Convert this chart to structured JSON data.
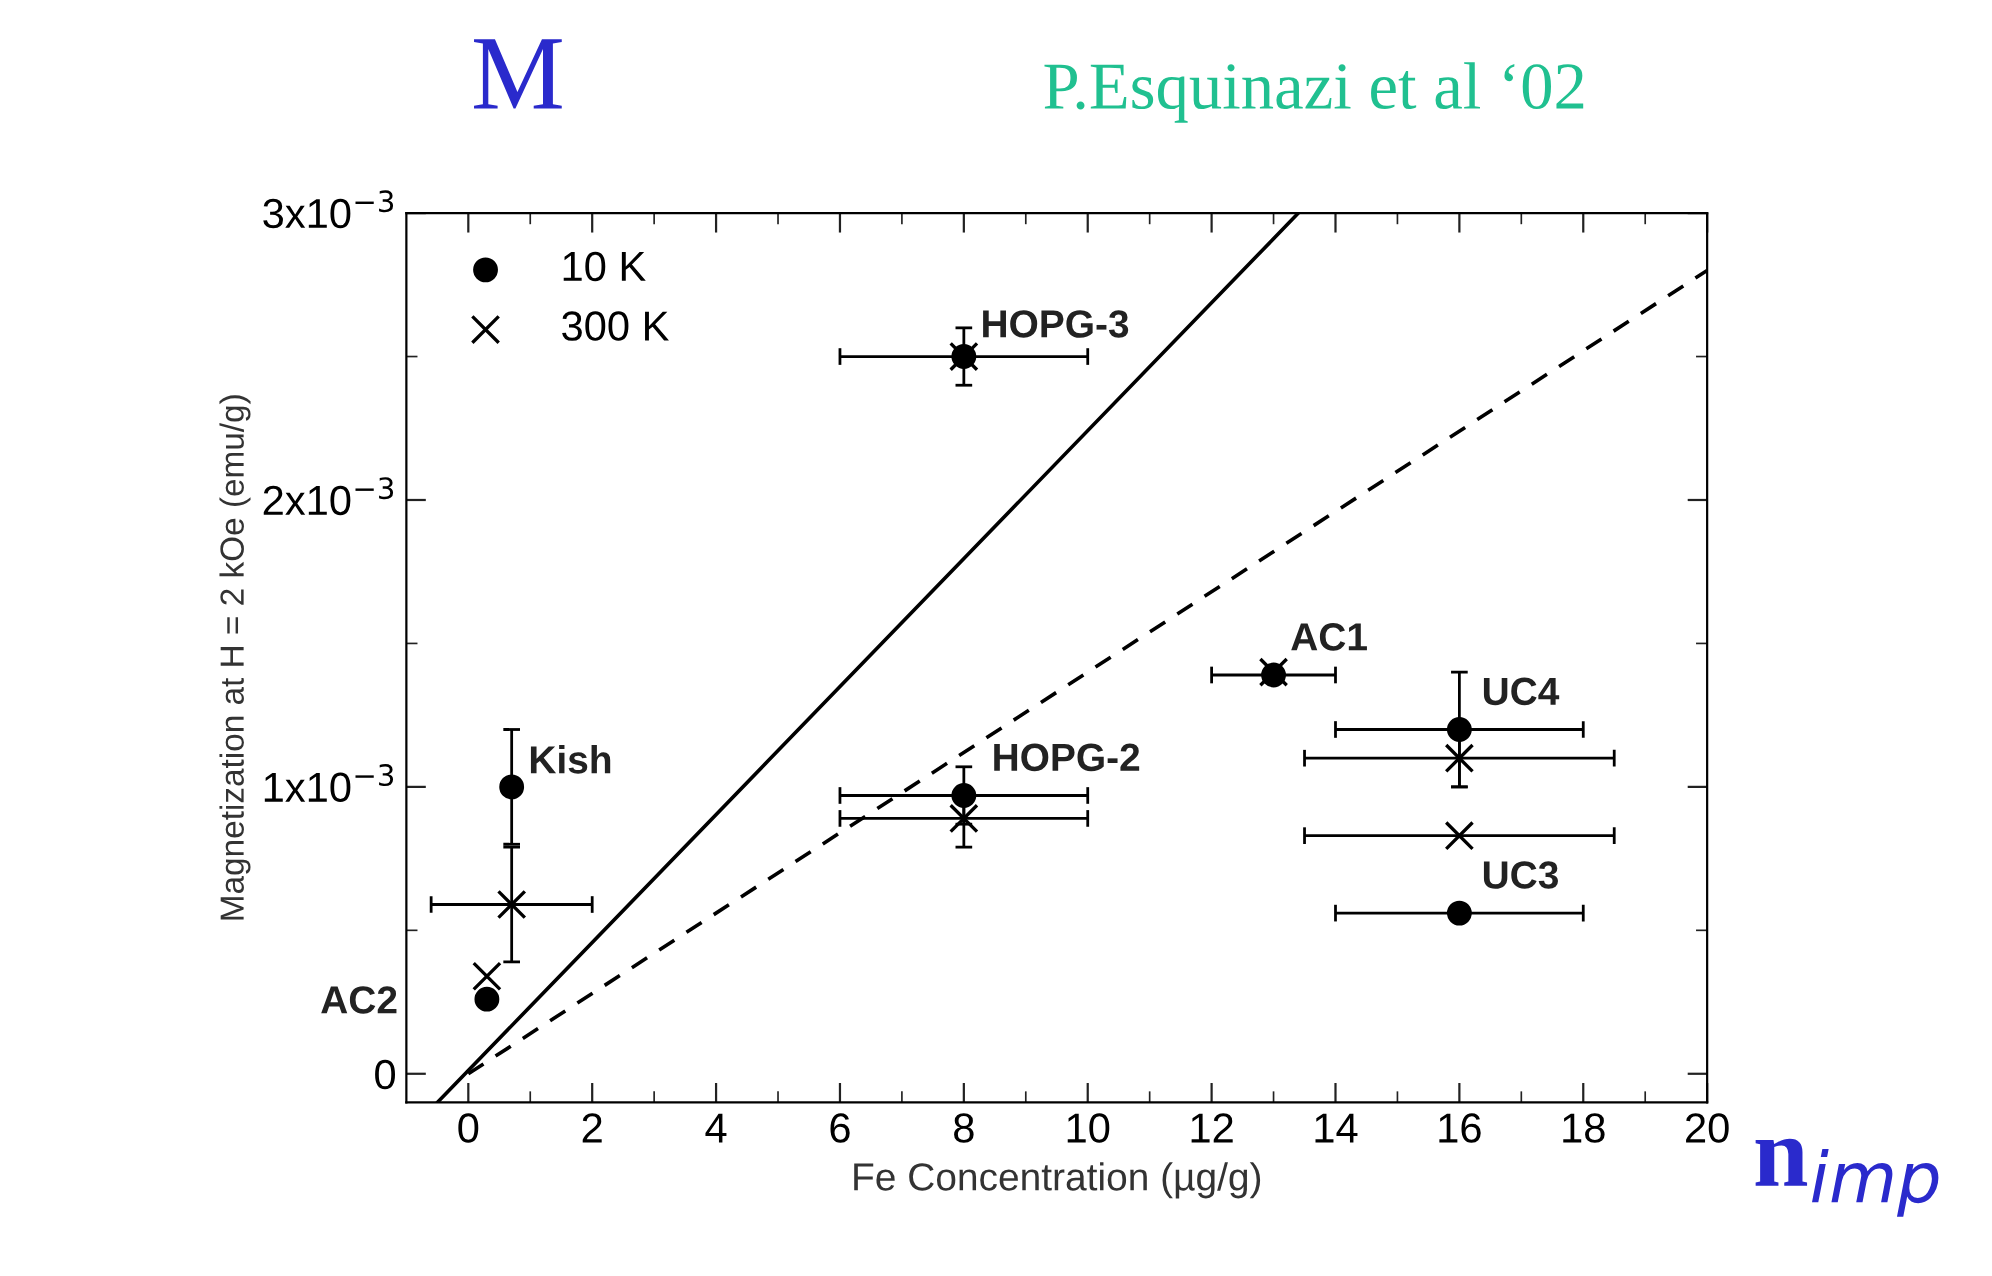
{
  "chart_data": {
    "type": "scatter",
    "title": "M",
    "xlabel": "Fe Concentration (µg/g)",
    "ylabel": "Magnetization at H = 2 kOe (emu/g)",
    "series": [
      {
        "name": "10 K",
        "color": "#000000",
        "marker": "circle",
        "x": [
          8,
          0.7,
          0.3,
          8,
          13,
          16,
          16
        ],
        "values": [
          0.0025,
          0.001,
          0.00026,
          0.00097,
          0.00139,
          0.0012,
          0.00056
        ],
        "errors": [
          0.0001,
          0.0002,
          null,
          0.0001,
          null,
          0.0002,
          null
        ],
        "xerrors": [
          2,
          null,
          null,
          2,
          1,
          2,
          2
        ]
      },
      {
        "name": "300 K",
        "color": "#000000",
        "marker": "cross",
        "x": [
          8,
          0.7,
          0.3,
          8,
          13,
          16,
          16
        ],
        "values": [
          0.0025,
          0.00059,
          0.00034,
          0.00089,
          0.0014,
          0.0011,
          0.00083
        ],
        "errors": [
          null,
          0.0002,
          null,
          0.0001,
          null,
          0.0001,
          null
        ],
        "xerrors": [
          null,
          1.3,
          null,
          2,
          null,
          2.5,
          2.5
        ]
      },
      {
        "type": "line",
        "color": "#000000",
        "line_style": "solid",
        "marker": "none",
        "x": [
          -0.5,
          13.4
        ],
        "values": [
          -0.0001,
          0.003
        ]
      },
      {
        "type": "line",
        "color": "#000000",
        "line_style": "dashed",
        "marker": "none",
        "x": [
          0,
          20
        ],
        "values": [
          0,
          0.0028
        ]
      }
    ],
    "xlim": [
      -1,
      20
    ],
    "ylim": [
      -0.0001,
      0.003
    ],
    "xticks": [
      0,
      2,
      4,
      6,
      8,
      10,
      12,
      14,
      16,
      18,
      20
    ],
    "yticks": [
      0,
      {
        "value": 0.001,
        "label": "1x10$^{−3}$"
      },
      {
        "value": 0.002,
        "label": "2x10$^{−3}$"
      },
      {
        "value": 0.003,
        "label": "3x10$^{−3}$"
      }
    ],
    "legend": "top left",
    "grid": false,
    "annotations": [
      {
        "text": "HOPG-3",
        "x": 8,
        "y": 0.0025
      },
      {
        "text": "Kish",
        "x": 0.7,
        "y": 0.001
      },
      {
        "text": "AC2",
        "x": 0.3,
        "y": 0.00026
      },
      {
        "text": "HOPG-2",
        "x": 8,
        "y": 0.00097
      },
      {
        "text": "AC1",
        "x": 13,
        "y": 0.00139
      },
      {
        "text": "UC4",
        "x": 16,
        "y": 0.0012
      },
      {
        "text": "UC3",
        "x": 16,
        "y": 0.00056
      },
      "P.Esquinazi et al ‘02",
      "n$_{imp}$"
    ]
  }
}
